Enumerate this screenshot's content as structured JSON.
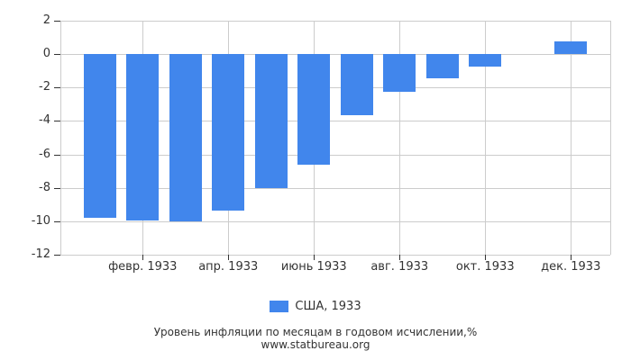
{
  "chart_data": {
    "type": "bar",
    "title": "Уровень инфляции по месяцам в годовом исчислении,%",
    "source_url": "www.statbureau.org",
    "legend": {
      "label": "США, 1933",
      "position": "bottom"
    },
    "series": [
      {
        "name": "США, 1933",
        "x_months": [
          1,
          2,
          3,
          4,
          5,
          6,
          7,
          8,
          9,
          10,
          11,
          12
        ],
        "values": [
          -9.79,
          -9.93,
          -10.03,
          -9.35,
          -8.03,
          -6.62,
          -3.68,
          -2.24,
          -1.44,
          -0.75,
          0.0,
          0.76
        ]
      }
    ],
    "x_tick_labels": [
      {
        "month": 2,
        "label": "февр. 1933"
      },
      {
        "month": 4,
        "label": "апр. 1933"
      },
      {
        "month": 6,
        "label": "июнь 1933"
      },
      {
        "month": 8,
        "label": "авг. 1933"
      },
      {
        "month": 10,
        "label": "окт. 1933"
      },
      {
        "month": 12,
        "label": "дек. 1933"
      }
    ],
    "y_ticks": [
      2,
      0,
      -2,
      -4,
      -6,
      -8,
      -10,
      -12
    ],
    "ylim": [
      -12,
      2
    ],
    "grid": true,
    "colors": {
      "bar": "#4186ec",
      "gridline": "#cccccc",
      "tick": "#333333",
      "text": "#333333",
      "background": "#ffffff"
    }
  }
}
